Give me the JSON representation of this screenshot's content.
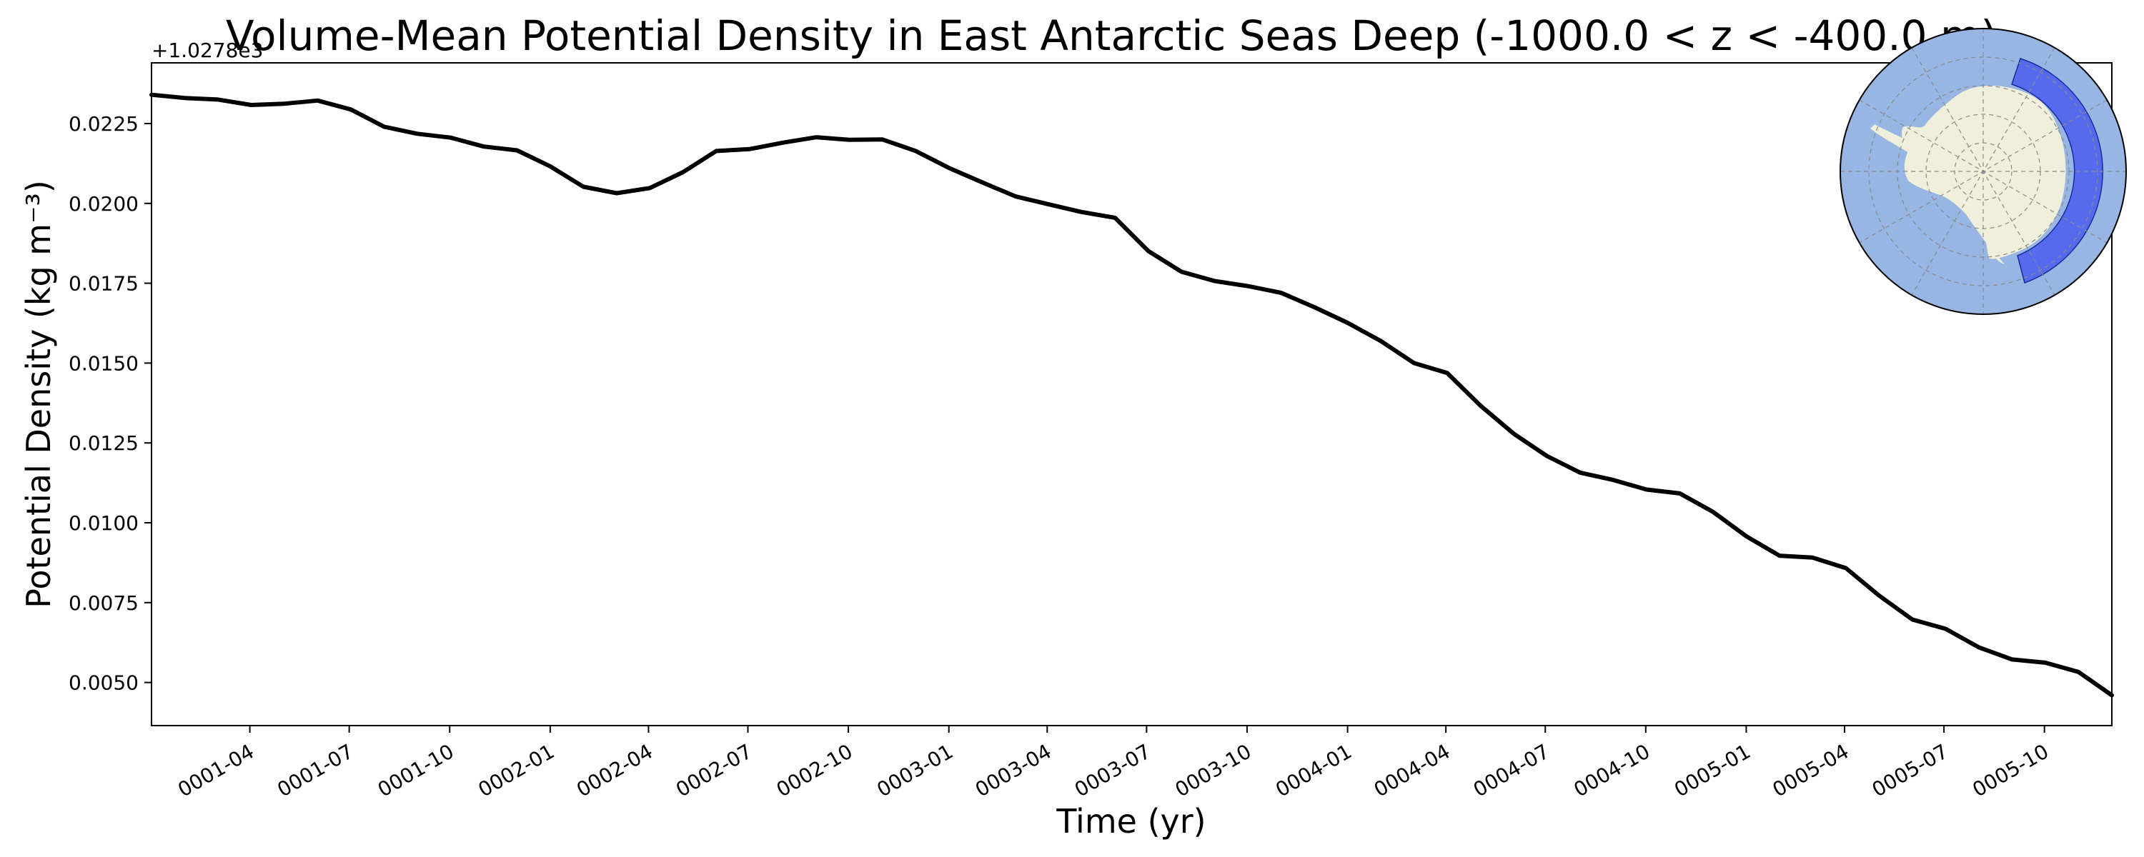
{
  "chart_data": {
    "type": "line",
    "title": "Volume-Mean Potential Density in East Antarctic Seas Deep (-1000.0 < z < -400.0 m)",
    "xlabel": "Time (yr)",
    "ylabel": "Potential Density (kg m⁻³)",
    "y_offset_label": "+1.0278e3",
    "xlim": [
      0.0,
      4.917
    ],
    "ylim": [
      0.00365,
      0.0244
    ],
    "yticks": [
      0.005,
      0.0075,
      0.01,
      0.0125,
      0.015,
      0.0175,
      0.02,
      0.0225
    ],
    "ytick_labels": [
      "0.0050",
      "0.0075",
      "0.0100",
      "0.0125",
      "0.0150",
      "0.0175",
      "0.0200",
      "0.0225"
    ],
    "xticks": [
      0.2466,
      0.4959,
      0.7479,
      1.0,
      1.2466,
      1.4959,
      1.7479,
      2.0,
      2.2466,
      2.4959,
      2.7479,
      3.0,
      3.2466,
      3.4959,
      3.7479,
      4.0,
      4.2466,
      4.4959,
      4.7479
    ],
    "xtick_labels": [
      "0001-04",
      "0001-07",
      "0001-10",
      "0002-01",
      "0002-04",
      "0002-07",
      "0002-10",
      "0003-01",
      "0003-04",
      "0003-07",
      "0003-10",
      "0004-01",
      "0004-04",
      "0004-07",
      "0004-10",
      "0005-01",
      "0005-04",
      "0005-07",
      "0005-10"
    ],
    "series": [
      {
        "name": "East Antarctic Seas Deep",
        "color": "#000000",
        "x": [
          0.0,
          0.0833,
          0.1667,
          0.25,
          0.3333,
          0.4167,
          0.5,
          0.5833,
          0.6667,
          0.75,
          0.8333,
          0.9167,
          1.0,
          1.0833,
          1.1667,
          1.25,
          1.3333,
          1.4167,
          1.5,
          1.5833,
          1.6667,
          1.75,
          1.8333,
          1.9167,
          2.0,
          2.0833,
          2.1667,
          2.25,
          2.3333,
          2.4167,
          2.5,
          2.5833,
          2.6667,
          2.75,
          2.8333,
          2.9167,
          3.0,
          3.0833,
          3.1667,
          3.25,
          3.3333,
          3.4167,
          3.5,
          3.5833,
          3.6667,
          3.75,
          3.8333,
          3.9167,
          4.0,
          4.0833,
          4.1667,
          4.25,
          4.3333,
          4.4167,
          4.5,
          4.5833,
          4.6667,
          4.75,
          4.8333,
          4.917
        ],
        "values": [
          0.0234,
          0.0233,
          0.02325,
          0.02308,
          0.02312,
          0.02322,
          0.02294,
          0.0224,
          0.02218,
          0.02206,
          0.02178,
          0.02166,
          0.02116,
          0.02052,
          0.02032,
          0.02048,
          0.02098,
          0.02164,
          0.0217,
          0.0219,
          0.02207,
          0.02199,
          0.022,
          0.02164,
          0.02111,
          0.02066,
          0.02022,
          0.01997,
          0.01973,
          0.01955,
          0.01851,
          0.01786,
          0.01757,
          0.01741,
          0.0172,
          0.01675,
          0.01626,
          0.01569,
          0.015,
          0.01469,
          0.01367,
          0.01279,
          0.01209,
          0.01157,
          0.01134,
          0.01104,
          0.01092,
          0.01034,
          0.00958,
          0.00897,
          0.00891,
          0.00858,
          0.00772,
          0.00697,
          0.00668,
          0.0061,
          0.00572,
          0.00562,
          0.00533,
          0.0046
        ]
      }
    ],
    "inset_map": {
      "ocean_color": "#98b6e3",
      "land_color": "#efefdc",
      "region_color": "#4f62ee"
    }
  }
}
